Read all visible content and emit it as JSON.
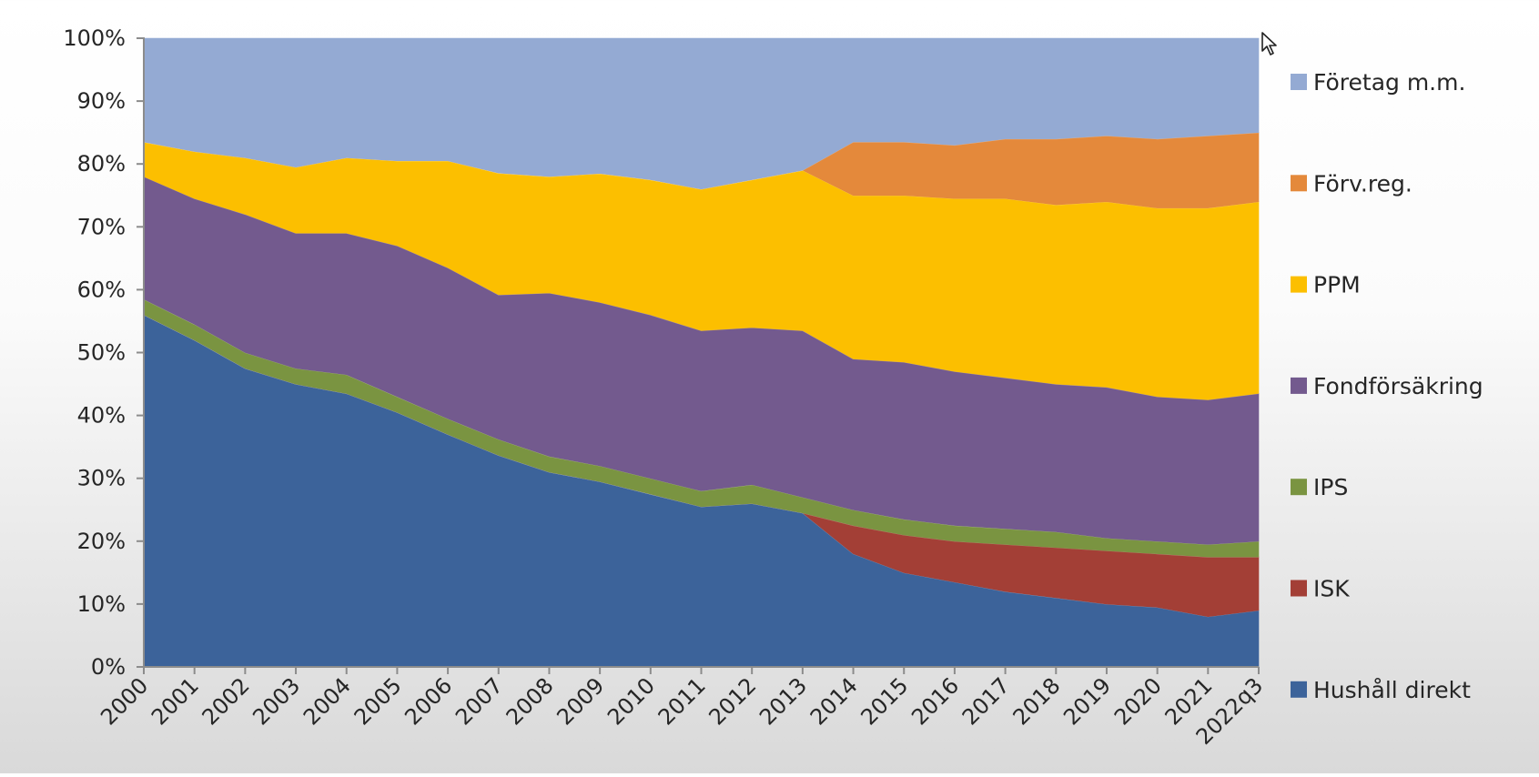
{
  "chart_data": {
    "type": "area",
    "stacked": true,
    "normalized": true,
    "categories": [
      "2000",
      "2001",
      "2002",
      "2003",
      "2004",
      "2005",
      "2006",
      "2007",
      "2008",
      "2009",
      "2010",
      "2011",
      "2012",
      "2013",
      "2014",
      "2015",
      "2016",
      "2017",
      "2018",
      "2019",
      "2020",
      "2021",
      "2022q3"
    ],
    "ylim": [
      0,
      100
    ],
    "y_ticks": [
      "0%",
      "10%",
      "20%",
      "30%",
      "40%",
      "50%",
      "60%",
      "70%",
      "80%",
      "90%",
      "100%"
    ],
    "legend_position": "right",
    "series": [
      {
        "name": "Hushåll direkt",
        "color": "#3c639a",
        "values": [
          56,
          52,
          47.5,
          45,
          43.5,
          40.5,
          37,
          33,
          31,
          29.5,
          27.5,
          25.5,
          26,
          24.5,
          18,
          15,
          13.5,
          12,
          11,
          10,
          9.5,
          8,
          9
        ]
      },
      {
        "name": "ISK",
        "color": "#a33f36",
        "values": [
          0,
          0,
          0,
          0,
          0,
          0,
          0,
          0,
          0,
          0,
          0,
          0,
          0,
          0,
          4.5,
          6,
          6.5,
          7.5,
          8,
          8.5,
          8.5,
          9.5,
          8.5
        ]
      },
      {
        "name": "IPS",
        "color": "#7a9441",
        "values": [
          2.5,
          2.5,
          2.5,
          2.5,
          3,
          2.5,
          2.5,
          2.5,
          2.5,
          2.5,
          2.5,
          2.5,
          3,
          2.5,
          2.5,
          2.5,
          2.5,
          2.5,
          2.5,
          2,
          2,
          2,
          2.5
        ]
      },
      {
        "name": "Fondförsäkring",
        "color": "#735a8e",
        "values": [
          19.5,
          20,
          22,
          21.5,
          22.5,
          24,
          24,
          22.5,
          26,
          26,
          26,
          25.5,
          25,
          26.5,
          24,
          25,
          24.5,
          24,
          23.5,
          24,
          23,
          23,
          23.5
        ]
      },
      {
        "name": "PPM",
        "color": "#fcbf00",
        "values": [
          5.5,
          7.5,
          9,
          10.5,
          12,
          13.5,
          17,
          19,
          18.5,
          20.5,
          21.5,
          22.5,
          23.5,
          25.5,
          26,
          26.5,
          27.5,
          28.5,
          28.5,
          29.5,
          30,
          30.5,
          30.5
        ]
      },
      {
        "name": "Förv.reg.",
        "color": "#e4893b",
        "values": [
          0,
          0,
          0,
          0,
          0,
          0,
          0,
          0,
          0,
          0,
          0,
          0,
          0,
          0,
          8.5,
          8.5,
          8.5,
          9.5,
          10.5,
          10.5,
          11,
          11.5,
          11
        ]
      },
      {
        "name": "Företag m.m.",
        "color": "#94aad3",
        "values": [
          16.5,
          18,
          19,
          20.5,
          19,
          19.5,
          19.5,
          21,
          22,
          21.5,
          22.5,
          24,
          22.5,
          21,
          16.5,
          16.5,
          17,
          16,
          16,
          15.5,
          16,
          15.5,
          15
        ]
      }
    ]
  }
}
